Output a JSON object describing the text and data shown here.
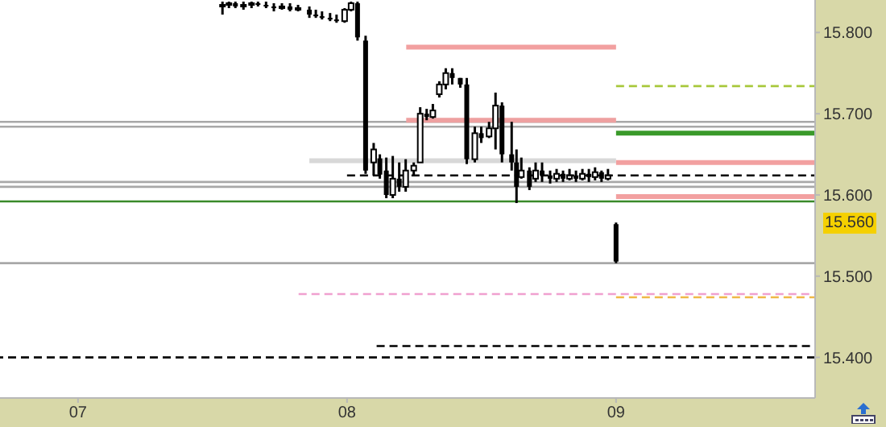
{
  "chart_data": {
    "type": "candlestick",
    "color": "#000000",
    "x": [
      7.537,
      7.561,
      7.585,
      7.615,
      7.645,
      7.669,
      7.699,
      7.728,
      7.758,
      7.788,
      7.818,
      7.86,
      7.884,
      7.907,
      7.937,
      7.961,
      7.991,
      8.015,
      8.039,
      8.069,
      8.099,
      8.122,
      8.146,
      8.17,
      8.194,
      8.218,
      8.248,
      8.272,
      8.296,
      8.319,
      8.343,
      8.367,
      8.391,
      8.421,
      8.445,
      8.475,
      8.499,
      8.528,
      8.552,
      8.576,
      8.612,
      8.63,
      8.648,
      8.678,
      8.701,
      8.725,
      8.755,
      8.779,
      8.803,
      8.827,
      8.851,
      8.875,
      8.899,
      8.922,
      8.946,
      8.97,
      9.0
    ],
    "ohlc": [
      [
        15.832,
        15.838,
        15.822,
        15.834
      ],
      [
        15.834,
        15.838,
        15.83,
        15.836
      ],
      [
        15.836,
        15.838,
        15.83,
        15.832
      ],
      [
        15.832,
        15.838,
        15.828,
        15.834
      ],
      [
        15.834,
        15.838,
        15.83,
        15.836
      ],
      [
        15.836,
        15.838,
        15.832,
        15.834
      ],
      [
        15.834,
        15.838,
        15.83,
        15.832
      ],
      [
        15.832,
        15.836,
        15.826,
        15.83
      ],
      [
        15.83,
        15.836,
        15.828,
        15.832
      ],
      [
        15.832,
        15.836,
        15.826,
        15.828
      ],
      [
        15.828,
        15.834,
        15.826,
        15.83
      ],
      [
        15.828,
        15.832,
        15.818,
        15.822
      ],
      [
        15.822,
        15.828,
        15.818,
        15.82
      ],
      [
        15.82,
        15.826,
        15.816,
        15.818
      ],
      [
        15.818,
        15.824,
        15.814,
        15.816
      ],
      [
        15.816,
        15.822,
        15.812,
        15.814
      ],
      [
        15.814,
        15.83,
        15.812,
        15.828
      ],
      [
        15.828,
        15.838,
        15.826,
        15.836
      ],
      [
        15.836,
        15.838,
        15.79,
        15.794
      ],
      [
        15.79,
        15.796,
        15.626,
        15.63
      ],
      [
        15.64,
        15.664,
        15.624,
        15.656
      ],
      [
        15.645,
        15.65,
        15.62,
        15.625
      ],
      [
        15.63,
        15.646,
        15.596,
        15.6
      ],
      [
        15.6,
        15.648,
        15.596,
        15.62
      ],
      [
        15.62,
        15.64,
        15.604,
        15.61
      ],
      [
        15.61,
        15.644,
        15.604,
        15.63
      ],
      [
        15.63,
        15.64,
        15.624,
        15.636
      ],
      [
        15.64,
        15.708,
        15.64,
        15.7
      ],
      [
        15.7,
        15.706,
        15.692,
        15.696
      ],
      [
        15.696,
        15.712,
        15.694,
        15.704
      ],
      [
        15.724,
        15.74,
        15.72,
        15.736
      ],
      [
        15.736,
        15.756,
        15.73,
        15.75
      ],
      [
        15.75,
        15.756,
        15.736,
        15.744
      ],
      [
        15.744,
        15.744,
        15.732,
        15.736
      ],
      [
        15.736,
        15.744,
        15.638,
        15.644
      ],
      [
        15.644,
        15.684,
        15.64,
        15.676
      ],
      [
        15.676,
        15.684,
        15.664,
        15.67
      ],
      [
        15.672,
        15.69,
        15.67,
        15.682
      ],
      [
        15.682,
        15.726,
        15.656,
        15.71
      ],
      [
        15.71,
        15.714,
        15.64,
        15.65
      ],
      [
        15.65,
        15.69,
        15.63,
        15.64
      ],
      [
        15.64,
        15.656,
        15.59,
        15.61
      ],
      [
        15.622,
        15.646,
        15.62,
        15.63
      ],
      [
        15.63,
        15.634,
        15.606,
        15.61
      ],
      [
        15.62,
        15.64,
        15.616,
        15.63
      ],
      [
        15.63,
        15.64,
        15.616,
        15.624
      ],
      [
        15.624,
        15.63,
        15.614,
        15.62
      ],
      [
        15.62,
        15.632,
        15.616,
        15.626
      ],
      [
        15.626,
        15.63,
        15.616,
        15.62
      ],
      [
        15.62,
        15.632,
        15.618,
        15.624
      ],
      [
        15.624,
        15.63,
        15.616,
        15.62
      ],
      [
        15.62,
        15.632,
        15.618,
        15.626
      ],
      [
        15.626,
        15.632,
        15.616,
        15.622
      ],
      [
        15.622,
        15.634,
        15.618,
        15.628
      ],
      [
        15.628,
        15.63,
        15.616,
        15.62
      ],
      [
        15.62,
        15.632,
        15.618,
        15.624
      ],
      [
        15.564,
        15.566,
        15.516,
        15.518
      ]
    ],
    "series": [
      {
        "type": "line",
        "x": [
          8.22,
          9.0
        ],
        "values": [
          15.782,
          15.782
        ],
        "color": "#f2a0a0",
        "line_style": "solid"
      },
      {
        "type": "line",
        "x": [
          8.22,
          9.0
        ],
        "values": [
          15.692,
          15.692
        ],
        "color": "#eea0a0",
        "line_style": "solid"
      },
      {
        "type": "line",
        "x": [
          9.0,
          9.74
        ],
        "values": [
          15.734,
          15.734
        ],
        "color": "#a8c83c",
        "line_style": "dashed"
      },
      {
        "type": "line",
        "x": [
          9.0,
          9.74
        ],
        "values": [
          15.676,
          15.676
        ],
        "color": "#3a9a2a",
        "line_style": "solid"
      },
      {
        "type": "line",
        "x": [
          9.0,
          9.74
        ],
        "values": [
          15.64,
          15.64
        ],
        "color": "#f2a0a0",
        "line_style": "solid"
      },
      {
        "type": "line",
        "x": [
          7.86,
          9.0
        ],
        "values": [
          15.642,
          15.642
        ],
        "color": "#d8d8d8",
        "line_style": "solid"
      },
      {
        "type": "line",
        "x": [
          8.0,
          9.74
        ],
        "values": [
          15.624,
          15.624
        ],
        "color": "#000000",
        "line_style": "dashed"
      },
      {
        "type": "line",
        "x": [
          9.0,
          9.74
        ],
        "values": [
          15.598,
          15.598
        ],
        "color": "#f2a0a0",
        "line_style": "solid"
      },
      {
        "type": "line",
        "x": [
          7.82,
          9.74
        ],
        "values": [
          15.478,
          15.478
        ],
        "color": "#f0a0d0",
        "line_style": "dashed"
      },
      {
        "type": "line",
        "x": [
          9.0,
          9.74
        ],
        "values": [
          15.474,
          15.474
        ],
        "color": "#f0b848",
        "line_style": "dashed"
      },
      {
        "type": "line",
        "x": [
          8.11,
          9.74
        ],
        "values": [
          15.414,
          15.414
        ],
        "color": "#000000",
        "line_style": "dashed"
      }
    ],
    "ref_lines": [
      {
        "axis": "y",
        "value": 15.69,
        "color": "#a8a8a8",
        "line_style": "solid"
      },
      {
        "axis": "y",
        "value": 15.684,
        "color": "#a8a8a8",
        "line_style": "solid"
      },
      {
        "axis": "y",
        "value": 15.616,
        "color": "#a8a8a8",
        "line_style": "solid"
      },
      {
        "axis": "y",
        "value": 15.61,
        "color": "#a8a8a8",
        "line_style": "solid"
      },
      {
        "axis": "y",
        "value": 15.592,
        "color": "#3a8a2a",
        "line_style": "solid"
      },
      {
        "axis": "y",
        "value": 15.516,
        "color": "#a8a8a8",
        "line_style": "solid"
      },
      {
        "axis": "y",
        "value": 15.4,
        "color": "#000000",
        "line_style": "dashed"
      }
    ],
    "annotations": [
      "15.560"
    ],
    "xlim": [
      6.71,
      9.74
    ],
    "xticks": [
      {
        "value": 7,
        "label": "07"
      },
      {
        "value": 8,
        "label": "08"
      },
      {
        "value": 9,
        "label": "09"
      }
    ],
    "ylim": [
      15.35,
      15.84
    ],
    "yticks": [
      {
        "value": 15.4,
        "label": "15.400"
      },
      {
        "value": 15.5,
        "label": "15.500"
      },
      {
        "value": 15.6,
        "label": "15.600"
      },
      {
        "value": 15.7,
        "label": "15.700"
      },
      {
        "value": 15.8,
        "label": "15.800"
      }
    ]
  }
}
